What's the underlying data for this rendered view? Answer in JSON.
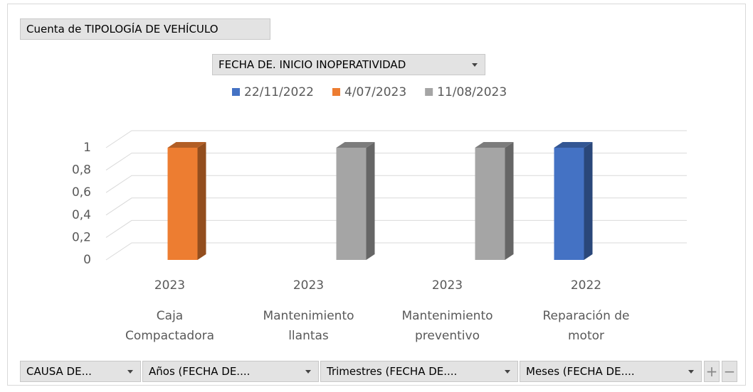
{
  "chart_data": {
    "type": "bar3d",
    "value_field": "Cuenta de TIPOLOGÍA DE VEHÍCULO",
    "legend_field": "FECHA DE. INICIO INOPERATIVIDAD",
    "axis_fields": [
      "CAUSA DE...",
      "Años (FECHA DE....",
      "Trimestres (FECHA DE....",
      "Meses (FECHA DE...."
    ],
    "category_years": [
      "2023",
      "2023",
      "2023",
      "2022"
    ],
    "categories": [
      "Caja Compactadora",
      "Mantenimiento llantas",
      "Mantenimiento preventivo",
      "Reparación de motor"
    ],
    "series": [
      {
        "name": "22/11/2022",
        "color": "#4472c4",
        "values": [
          null,
          null,
          null,
          1
        ]
      },
      {
        "name": "4/07/2023",
        "color": "#ed7d31",
        "values": [
          1,
          null,
          null,
          null
        ]
      },
      {
        "name": "11/08/2023",
        "color": "#a5a5a5",
        "values": [
          null,
          1,
          1,
          null
        ]
      }
    ],
    "ylim": [
      0,
      1
    ],
    "yticks": [
      0,
      {
        "value": 0.2,
        "label": "0,2"
      },
      {
        "value": 0.4,
        "label": "0,4"
      },
      {
        "value": 0.6,
        "label": "0,6"
      },
      {
        "value": 0.8,
        "label": "0,8"
      },
      1
    ],
    "grid": true
  }
}
